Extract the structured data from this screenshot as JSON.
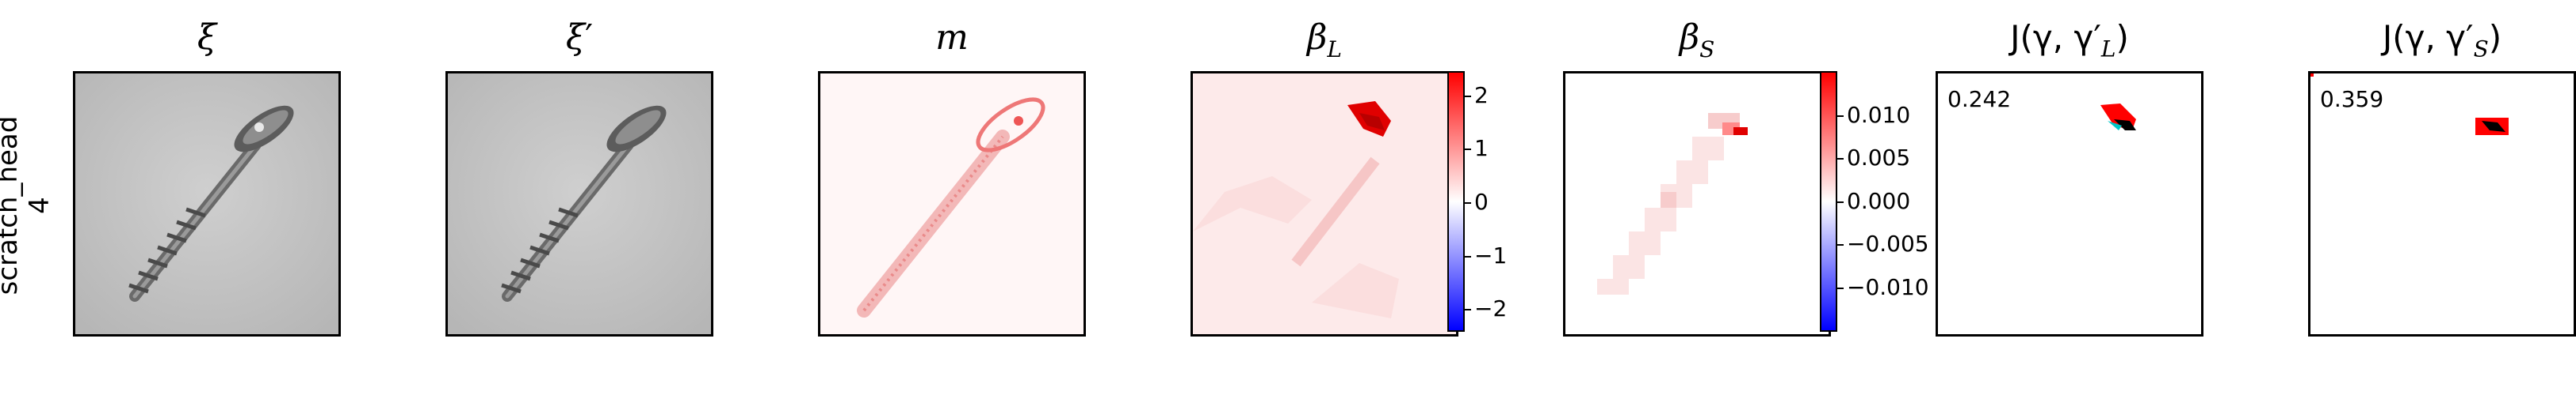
{
  "row_label": {
    "line1": "scratch_head",
    "line2": "4"
  },
  "panels": [
    {
      "title_base": "ξ",
      "title_suffix": ""
    },
    {
      "title_base": "ξ",
      "title_suffix": "′"
    },
    {
      "title_base": "m",
      "title_suffix": ""
    },
    {
      "title_base": "β",
      "title_suffix": "L"
    },
    {
      "title_base": "β",
      "title_suffix": "S"
    },
    {
      "title_text": "J(γ, γ′",
      "title_suffix": "L",
      "title_close": ")"
    },
    {
      "title_text": "J(γ, γ′",
      "title_suffix": "S",
      "title_close": ")"
    }
  ],
  "colorbar_L": {
    "ticks": [
      "2",
      "1",
      "0",
      "−1",
      "−2"
    ]
  },
  "colorbar_S": {
    "ticks": [
      "0.010",
      "0.005",
      "0.000",
      "−0.005",
      "−0.010"
    ]
  },
  "scores": {
    "L": "0.242",
    "S": "0.359"
  },
  "colors": {
    "positive": "#ff0000",
    "negative": "#0000ff",
    "neutral": "#ffffff",
    "overlap_cyan": "#00c8c8"
  }
}
